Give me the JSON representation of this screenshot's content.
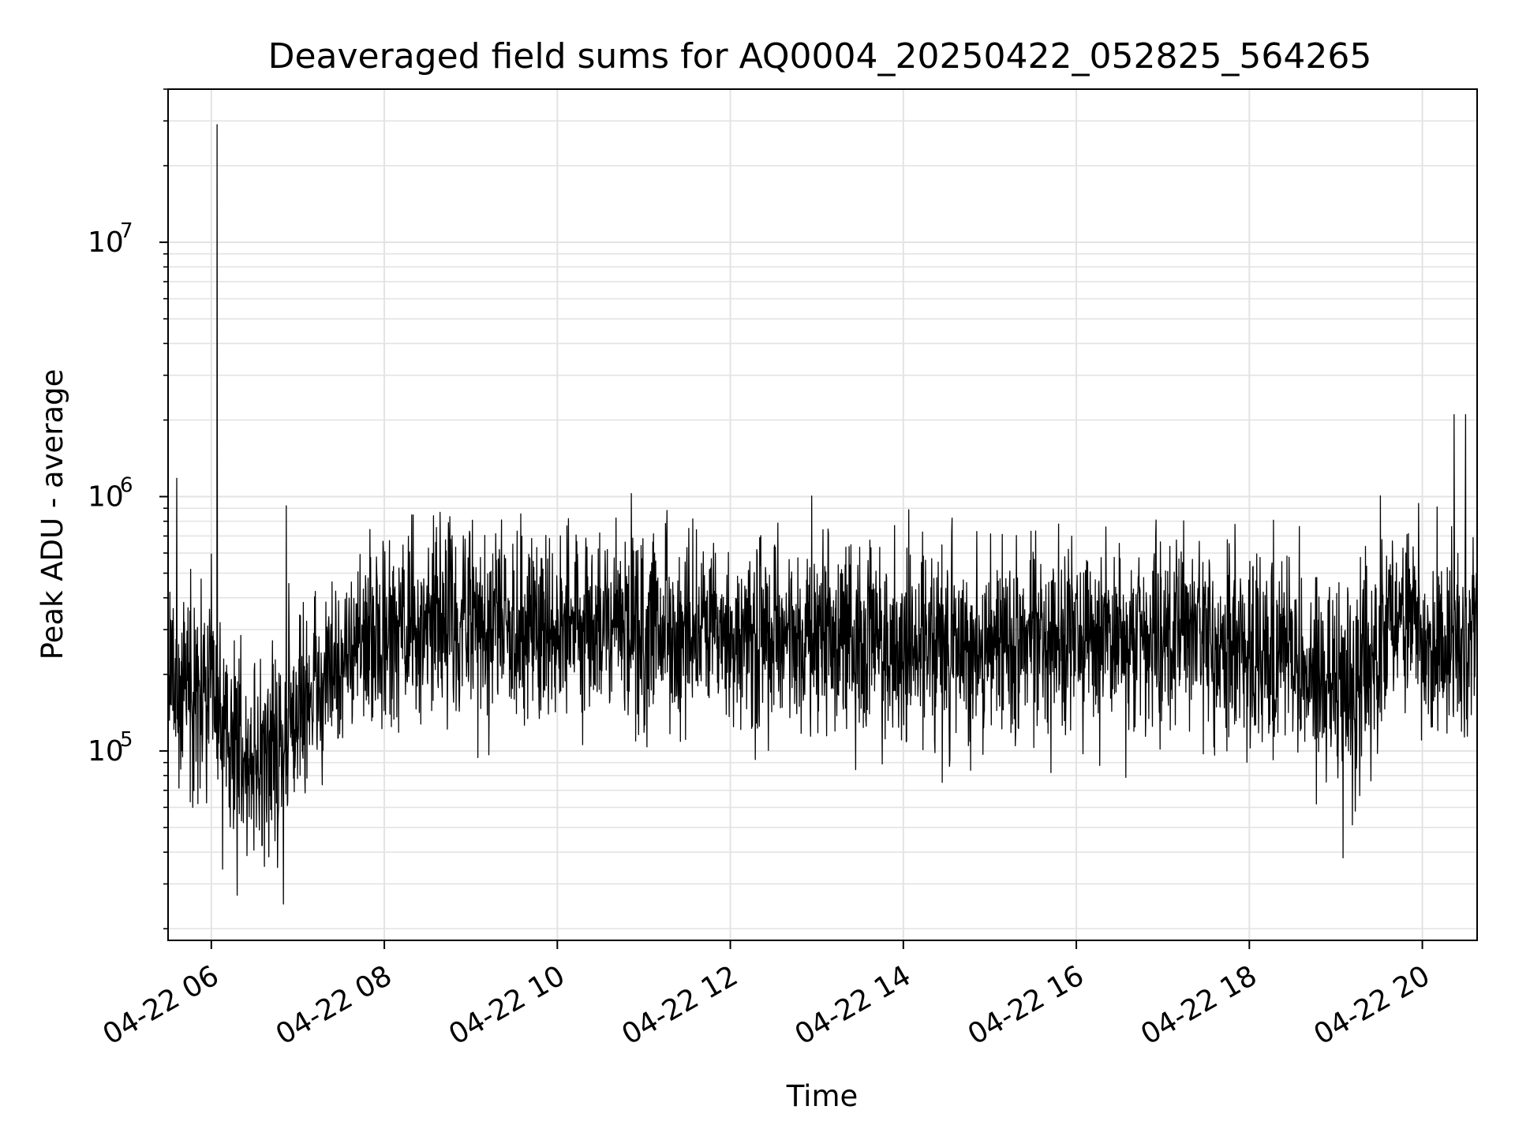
{
  "chart_data": {
    "type": "line",
    "title": "Deaveraged field sums for AQ0004_20250422_052825_564265",
    "xlabel": "Time",
    "ylabel": "Peak ADU - average",
    "yscale": "log",
    "grid": true,
    "grid_minor": true,
    "legend": "none",
    "line_color": "#000000",
    "grid_color": "#e3e3e3",
    "xlim": [
      "2025-04-22 05:30",
      "2025-04-22 20:38"
    ],
    "ylim": [
      18000,
      40000000
    ],
    "x_ticks": [
      {
        "time": "2025-04-22 06:00",
        "label": "04-22 06"
      },
      {
        "time": "2025-04-22 08:00",
        "label": "04-22 08"
      },
      {
        "time": "2025-04-22 10:00",
        "label": "04-22 10"
      },
      {
        "time": "2025-04-22 12:00",
        "label": "04-22 12"
      },
      {
        "time": "2025-04-22 14:00",
        "label": "04-22 14"
      },
      {
        "time": "2025-04-22 16:00",
        "label": "04-22 16"
      },
      {
        "time": "2025-04-22 18:00",
        "label": "04-22 18"
      },
      {
        "time": "2025-04-22 20:00",
        "label": "04-22 20"
      }
    ],
    "y_ticks": [
      {
        "value": 100000,
        "base": "10",
        "exp": "5"
      },
      {
        "value": 1000000,
        "base": "10",
        "exp": "6"
      },
      {
        "value": 10000000,
        "base": "10",
        "exp": "7"
      }
    ],
    "series": [
      {
        "x": [
          "2025-04-22 05:30",
          "2025-04-22 05:45",
          "2025-04-22 06:00",
          "2025-04-22 06:15",
          "2025-04-22 06:30",
          "2025-04-22 06:45",
          "2025-04-22 07:00",
          "2025-04-22 07:15",
          "2025-04-22 07:30",
          "2025-04-22 07:45",
          "2025-04-22 08:00",
          "2025-04-22 08:30",
          "2025-04-22 09:00",
          "2025-04-22 09:30",
          "2025-04-22 10:00",
          "2025-04-22 10:30",
          "2025-04-22 11:00",
          "2025-04-22 11:30",
          "2025-04-22 12:00",
          "2025-04-22 12:30",
          "2025-04-22 13:00",
          "2025-04-22 13:30",
          "2025-04-22 14:00",
          "2025-04-22 14:30",
          "2025-04-22 15:00",
          "2025-04-22 15:30",
          "2025-04-22 16:00",
          "2025-04-22 16:30",
          "2025-04-22 17:00",
          "2025-04-22 17:30",
          "2025-04-22 18:00",
          "2025-04-22 18:30",
          "2025-04-22 18:45",
          "2025-04-22 19:00",
          "2025-04-22 19:15",
          "2025-04-22 19:30",
          "2025-04-22 19:45",
          "2025-04-22 20:00",
          "2025-04-22 20:15",
          "2025-04-22 20:30",
          "2025-04-22 20:38"
        ],
        "y": [
          180000,
          190000,
          150000,
          110000,
          90000,
          100000,
          140000,
          190000,
          230000,
          260000,
          280000,
          310000,
          330000,
          330000,
          320000,
          310000,
          300000,
          280000,
          260000,
          270000,
          280000,
          280000,
          260000,
          260000,
          260000,
          270000,
          280000,
          280000,
          280000,
          270000,
          260000,
          230000,
          190000,
          170000,
          170000,
          280000,
          320000,
          280000,
          270000,
          300000,
          320000
        ]
      }
    ],
    "spikes": [
      {
        "time": "2025-04-22 06:04",
        "value": 29000000
      },
      {
        "time": "2025-04-22 06:52",
        "value": 920000
      },
      {
        "time": "2025-04-22 05:36",
        "value": 1180000
      },
      {
        "time": "2025-04-22 20:30",
        "value": 2100000
      },
      {
        "time": "2025-04-22 20:22",
        "value": 2100000
      },
      {
        "time": "2025-04-22 06:50",
        "value": 25000
      },
      {
        "time": "2025-04-22 19:05",
        "value": 38000
      }
    ]
  }
}
